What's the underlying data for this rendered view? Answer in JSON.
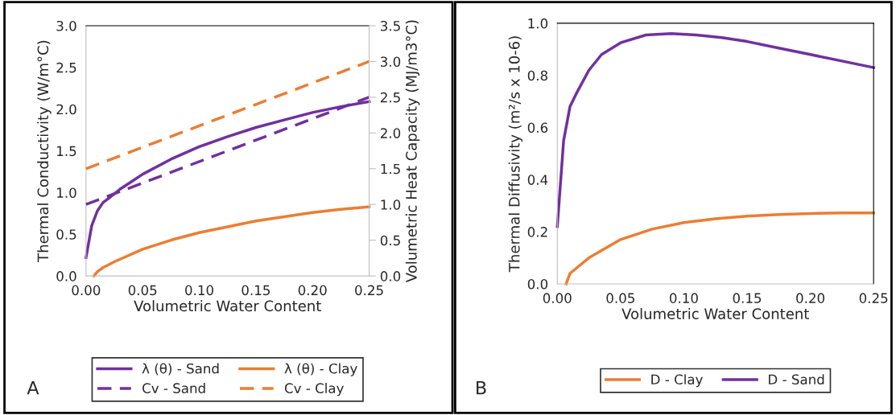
{
  "chart_data": [
    {
      "type": "line",
      "xlabel": "Volumetric Water Content",
      "ylabel": "Thermal Conductivity (W/m°C)",
      "y2label": "Volumetric Heat Capacity (MJ/m3°C)",
      "xlim": [
        0,
        0.25
      ],
      "xticks": [
        {
          "value": 0,
          "label": "0.00"
        },
        {
          "value": 0.05,
          "label": "0.05"
        },
        {
          "value": 0.1,
          "label": "0.10"
        },
        {
          "value": 0.15,
          "label": "0.15"
        },
        {
          "value": 0.2,
          "label": "0.20"
        },
        {
          "value": 0.25,
          "label": "0.25"
        }
      ],
      "ylim": [
        0,
        3
      ],
      "yticks": [
        {
          "value": 0,
          "label": "0.0"
        },
        {
          "value": 0.5,
          "label": "0.5"
        },
        {
          "value": 1,
          "label": "1.0"
        },
        {
          "value": 1.5,
          "label": "1.5"
        },
        {
          "value": 2,
          "label": "2.0"
        },
        {
          "value": 2.5,
          "label": "2.5"
        },
        {
          "value": 3,
          "label": "3.0"
        }
      ],
      "y2lim": [
        0,
        3.5
      ],
      "y2ticks": [
        {
          "value": 0,
          "label": "0.0"
        },
        {
          "value": 0.5,
          "label": "0.5"
        },
        {
          "value": 1,
          "label": "1.0"
        },
        {
          "value": 1.5,
          "label": "1.5"
        },
        {
          "value": 2,
          "label": "2.0"
        },
        {
          "value": 2.5,
          "label": "2.5"
        },
        {
          "value": 3,
          "label": "3.0"
        },
        {
          "value": 3.5,
          "label": "3.5"
        }
      ],
      "grid": false,
      "legend": "bottom",
      "marker": "none",
      "annotations": [
        "A"
      ],
      "series": [
        {
          "name": "λ (θ) - Sand",
          "color": "#7030a0",
          "line_style": "solid",
          "x": [
            0,
            0.005,
            0.01,
            0.015,
            0.02,
            0.03,
            0.04,
            0.05,
            0.075,
            0.1,
            0.125,
            0.15,
            0.175,
            0.2,
            0.225,
            0.25
          ],
          "values": [
            0.22,
            0.6,
            0.78,
            0.88,
            0.93,
            1.04,
            1.13,
            1.22,
            1.4,
            1.55,
            1.67,
            1.78,
            1.87,
            1.96,
            2.03,
            2.09
          ]
        },
        {
          "name": "λ (θ) - Clay",
          "color": "#ed7d31",
          "line_style": "solid",
          "x": [
            0.007,
            0.01,
            0.015,
            0.025,
            0.05,
            0.075,
            0.1,
            0.125,
            0.15,
            0.175,
            0.2,
            0.225,
            0.25
          ],
          "values": [
            0,
            0.05,
            0.1,
            0.17,
            0.32,
            0.43,
            0.52,
            0.59,
            0.66,
            0.71,
            0.76,
            0.8,
            0.83
          ]
        },
        {
          "name": "Cv - Sand",
          "color": "#7030a0",
          "line_style": "dashed",
          "axis": "y2",
          "x": [
            0,
            0.25
          ],
          "values": [
            1.0,
            2.5
          ]
        },
        {
          "name": "Cv - Clay",
          "color": "#ed7d31",
          "line_style": "dashed",
          "axis": "y2",
          "x": [
            0,
            0.25
          ],
          "values": [
            1.5,
            3.0
          ]
        }
      ]
    },
    {
      "type": "line",
      "xlabel": "Volumetric Water Content",
      "ylabel": "Thermal Diffusivity (m²/s x 10-6)",
      "xlim": [
        0,
        0.25
      ],
      "xticks": [
        {
          "value": 0,
          "label": "0.00"
        },
        {
          "value": 0.05,
          "label": "0.05"
        },
        {
          "value": 0.1,
          "label": "0.10"
        },
        {
          "value": 0.15,
          "label": "0.15"
        },
        {
          "value": 0.2,
          "label": "0.20"
        },
        {
          "value": 0.25,
          "label": "0.25"
        }
      ],
      "ylim": [
        0,
        1
      ],
      "yticks": [
        {
          "value": 0,
          "label": "0.0"
        },
        {
          "value": 0.2,
          "label": "0.2"
        },
        {
          "value": 0.4,
          "label": "0.4"
        },
        {
          "value": 0.6,
          "label": "0.6"
        },
        {
          "value": 0.8,
          "label": "0.8"
        },
        {
          "value": 1,
          "label": "1.0"
        }
      ],
      "grid": false,
      "legend": "bottom",
      "marker": "none",
      "line_style": "solid",
      "annotations": [
        "B"
      ],
      "series": [
        {
          "name": "D - Clay",
          "color": "#ed7d31",
          "x": [
            0.007,
            0.01,
            0.015,
            0.025,
            0.05,
            0.075,
            0.1,
            0.125,
            0.15,
            0.175,
            0.2,
            0.225,
            0.25
          ],
          "values": [
            0,
            0.04,
            0.06,
            0.1,
            0.17,
            0.21,
            0.235,
            0.25,
            0.26,
            0.266,
            0.27,
            0.272,
            0.272
          ]
        },
        {
          "name": "D - Sand",
          "color": "#7030a0",
          "x": [
            0,
            0.005,
            0.01,
            0.015,
            0.025,
            0.035,
            0.05,
            0.07,
            0.09,
            0.11,
            0.13,
            0.15,
            0.175,
            0.2,
            0.225,
            0.25
          ],
          "values": [
            0.22,
            0.55,
            0.68,
            0.73,
            0.82,
            0.88,
            0.925,
            0.955,
            0.96,
            0.955,
            0.945,
            0.93,
            0.905,
            0.88,
            0.855,
            0.83
          ]
        }
      ]
    }
  ]
}
